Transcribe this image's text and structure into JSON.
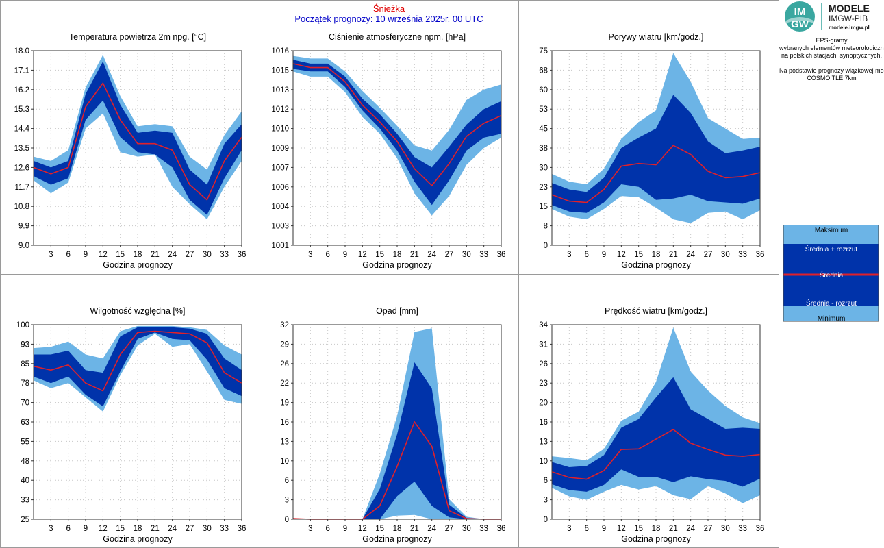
{
  "header": {
    "station": "Śnieżka",
    "start": "Początek prognozy: 10 września 2025r. 00 UTC"
  },
  "logo": {
    "mark_line1": "IM",
    "mark_line2": "GW",
    "title": "MODELE",
    "org": "IMGW-PIB",
    "site": "modele.imgw.pl"
  },
  "side": {
    "line1": "EPS-gramy",
    "line2": "wybranych elementów meteorologicznych",
    "line3": "na polskich stacjach  synoptycznych.",
    "line4": "Na podstawie prognozy wiązkowej modelu",
    "line5": "COSMO TLE 7km"
  },
  "legend": {
    "max": "Maksimum",
    "plus": "Średnia + rozrzut",
    "mean": "Średnia",
    "minus": "Średnia - rozrzut",
    "min": "Minimum"
  },
  "colors": {
    "outer_band": "#6cb4e6",
    "inner_band": "#0033aa",
    "mean_line": "#e0202a",
    "grid": "#c8c8c8"
  },
  "chart_data": [
    {
      "type": "area",
      "title": "Temperatura powietrza 2m npg. [°C]",
      "xlabel": "Godzina prognozy",
      "x": [
        0,
        3,
        6,
        9,
        12,
        15,
        18,
        21,
        24,
        27,
        30,
        33,
        36
      ],
      "xticks": [
        "3",
        "6",
        "9",
        "12",
        "15",
        "18",
        "21",
        "24",
        "27",
        "30",
        "33",
        "36"
      ],
      "ylim": [
        9.0,
        18.0
      ],
      "yticks": [
        "9.0",
        "9.9",
        "10.8",
        "11.7",
        "12.6",
        "13.5",
        "14.4",
        "15.3",
        "16.2",
        "17.1",
        "18.0"
      ],
      "max": [
        13.1,
        12.9,
        13.4,
        16.3,
        17.8,
        15.9,
        14.5,
        14.6,
        14.5,
        13.1,
        12.5,
        14.1,
        15.2
      ],
      "mean_plus": [
        12.9,
        12.6,
        12.9,
        16.0,
        17.5,
        15.5,
        14.2,
        14.3,
        14.2,
        12.5,
        11.8,
        13.7,
        14.6
      ],
      "mean": [
        12.6,
        12.3,
        12.6,
        15.4,
        16.5,
        14.8,
        13.7,
        13.7,
        13.4,
        11.8,
        11.1,
        12.9,
        14.0
      ],
      "mean_minus": [
        12.2,
        11.8,
        12.1,
        14.8,
        15.7,
        14.0,
        13.3,
        13.2,
        12.6,
        11.1,
        10.4,
        12.1,
        13.4
      ],
      "min": [
        12.0,
        11.4,
        11.9,
        14.4,
        15.1,
        13.3,
        13.1,
        13.2,
        11.7,
        10.9,
        10.2,
        11.7,
        12.9
      ]
    },
    {
      "type": "area",
      "title": "Ciśnienie atmosferyczne npm. [hPa]",
      "xlabel": "Godzina prognozy",
      "x": [
        0,
        3,
        6,
        9,
        12,
        15,
        18,
        21,
        24,
        27,
        30,
        33,
        36
      ],
      "xticks": [
        "3",
        "6",
        "9",
        "12",
        "15",
        "18",
        "21",
        "24",
        "27",
        "30",
        "33",
        "36"
      ],
      "ylim": [
        1001,
        1016
      ],
      "yticks": [
        "1001",
        "1003",
        "1004",
        "1006",
        "1007",
        "1009",
        "1010",
        "1012",
        "1013",
        "1015",
        "1016"
      ],
      "max": [
        1015.6,
        1015.4,
        1015.4,
        1014.4,
        1012.9,
        1011.6,
        1010.2,
        1008.7,
        1008.3,
        1009.9,
        1012.2,
        1013.0,
        1013.4
      ],
      "mean_plus": [
        1015.3,
        1015.0,
        1015.0,
        1014.0,
        1012.3,
        1011.1,
        1009.6,
        1007.8,
        1007.0,
        1008.6,
        1010.3,
        1011.5,
        1012.1
      ],
      "mean": [
        1015.0,
        1014.7,
        1014.7,
        1013.6,
        1011.8,
        1010.5,
        1009.0,
        1006.9,
        1005.6,
        1007.3,
        1009.4,
        1010.4,
        1011.0
      ],
      "mean_minus": [
        1014.6,
        1014.4,
        1014.4,
        1013.2,
        1011.4,
        1010.0,
        1008.3,
        1005.9,
        1004.1,
        1006.0,
        1008.3,
        1009.3,
        1009.6
      ],
      "min": [
        1014.4,
        1014.0,
        1014.0,
        1012.8,
        1010.9,
        1009.6,
        1007.7,
        1005.0,
        1003.3,
        1004.8,
        1007.2,
        1008.5,
        1009.3
      ]
    },
    {
      "type": "area",
      "title": "Porywy wiatru [km/godz.]",
      "xlabel": "Godzina prognozy",
      "x": [
        0,
        3,
        6,
        9,
        12,
        15,
        18,
        21,
        24,
        27,
        30,
        33,
        36
      ],
      "xticks": [
        "3",
        "6",
        "9",
        "12",
        "15",
        "18",
        "21",
        "24",
        "27",
        "30",
        "33",
        "36"
      ],
      "ylim": [
        0,
        75
      ],
      "yticks": [
        "0",
        "8",
        "15",
        "23",
        "30",
        "38",
        "45",
        "53",
        "60",
        "68",
        "75"
      ],
      "max": [
        27.5,
        24.5,
        23.5,
        29.5,
        41.0,
        47.5,
        52.0,
        74.0,
        63.0,
        49.0,
        45.0,
        41.0,
        41.5
      ],
      "mean_plus": [
        24.0,
        21.5,
        20.5,
        26.0,
        37.5,
        41.5,
        45.0,
        58.0,
        51.0,
        40.0,
        35.5,
        36.5,
        38.0
      ],
      "mean": [
        19.5,
        17.0,
        16.5,
        21.5,
        30.5,
        31.5,
        31.0,
        38.5,
        35.0,
        28.5,
        26.0,
        26.5,
        28.0
      ],
      "mean_minus": [
        15.5,
        13.0,
        12.5,
        16.5,
        23.5,
        22.5,
        17.5,
        18.0,
        19.5,
        17.0,
        16.5,
        16.0,
        18.0
      ],
      "min": [
        14.0,
        11.0,
        10.0,
        14.0,
        19.0,
        18.5,
        14.5,
        10.0,
        8.5,
        12.5,
        13.0,
        10.0,
        13.5
      ]
    },
    {
      "type": "area",
      "title": "Wilgotność względna [%]",
      "xlabel": "Godzina prognozy",
      "x": [
        0,
        3,
        6,
        9,
        12,
        15,
        18,
        21,
        24,
        27,
        30,
        33,
        36
      ],
      "xticks": [
        "3",
        "6",
        "9",
        "12",
        "15",
        "18",
        "21",
        "24",
        "27",
        "30",
        "33",
        "36"
      ],
      "ylim": [
        25,
        100
      ],
      "yticks": [
        "25",
        "33",
        "40",
        "48",
        "55",
        "63",
        "70",
        "78",
        "85",
        "93",
        "100"
      ],
      "max": [
        91.0,
        91.5,
        93.5,
        88.5,
        87.0,
        97.5,
        99.5,
        99.5,
        99.5,
        99.0,
        98.0,
        92.0,
        88.5
      ],
      "mean_plus": [
        88.5,
        88.5,
        90.0,
        82.5,
        81.5,
        95.5,
        99.0,
        99.0,
        99.0,
        98.5,
        96.5,
        87.0,
        82.5
      ],
      "mean": [
        84.0,
        82.5,
        84.5,
        77.5,
        74.5,
        88.5,
        97.0,
        97.5,
        97.0,
        96.5,
        93.0,
        81.5,
        77.5
      ],
      "mean_minus": [
        80.0,
        77.5,
        80.0,
        73.0,
        68.5,
        82.0,
        94.5,
        97.0,
        94.5,
        94.0,
        86.5,
        75.5,
        72.5
      ],
      "min": [
        78.5,
        75.5,
        77.5,
        72.0,
        66.5,
        80.5,
        92.0,
        96.5,
        91.5,
        92.5,
        82.0,
        71.0,
        69.5
      ]
    },
    {
      "type": "area",
      "title": "Opad [mm]",
      "xlabel": "Godzina prognozy",
      "x": [
        0,
        3,
        6,
        9,
        12,
        15,
        18,
        21,
        24,
        27,
        30,
        33,
        36
      ],
      "xticks": [
        "3",
        "6",
        "9",
        "12",
        "15",
        "18",
        "21",
        "24",
        "27",
        "30",
        "33",
        "36"
      ],
      "ylim": [
        0,
        32
      ],
      "yticks": [
        "0",
        "3",
        "6",
        "10",
        "13",
        "16",
        "19",
        "22",
        "26",
        "29",
        "32"
      ],
      "max": [
        0.1,
        0.0,
        0.0,
        0.0,
        0.0,
        7.5,
        17.0,
        30.8,
        31.4,
        3.3,
        0.4,
        0.0,
        0.0
      ],
      "mean_plus": [
        0.1,
        0.0,
        0.0,
        0.0,
        0.0,
        5.0,
        14.0,
        25.8,
        21.5,
        2.4,
        0.2,
        0.0,
        0.0
      ],
      "mean": [
        0.1,
        0.0,
        0.0,
        0.0,
        0.0,
        2.2,
        8.7,
        16.0,
        12.0,
        1.4,
        0.1,
        0.0,
        0.0
      ],
      "mean_minus": [
        0.0,
        0.0,
        0.0,
        0.0,
        0.0,
        0.0,
        3.8,
        6.2,
        2.2,
        0.3,
        0.0,
        0.0,
        0.0
      ],
      "min": [
        0.0,
        0.0,
        0.0,
        0.0,
        0.0,
        0.0,
        0.6,
        0.7,
        0.0,
        0.0,
        0.0,
        0.0,
        0.0
      ]
    },
    {
      "type": "area",
      "title": "Prędkość wiatru [km/godz.]",
      "xlabel": "Godzina prognozy",
      "x": [
        0,
        3,
        6,
        9,
        12,
        15,
        18,
        21,
        24,
        27,
        30,
        33,
        36
      ],
      "xticks": [
        "3",
        "6",
        "9",
        "12",
        "15",
        "18",
        "21",
        "24",
        "27",
        "30",
        "33",
        "36"
      ],
      "ylim": [
        0,
        34
      ],
      "yticks": [
        "0",
        "3",
        "6",
        "10",
        "13",
        "16",
        "20",
        "23",
        "26",
        "31",
        "34"
      ],
      "max": [
        11.0,
        10.7,
        10.3,
        12.3,
        17.2,
        18.8,
        24.0,
        33.5,
        25.8,
        22.5,
        19.8,
        17.8,
        16.8
      ],
      "mean_plus": [
        10.0,
        9.1,
        9.3,
        11.2,
        16.0,
        17.5,
        21.3,
        24.8,
        19.2,
        17.5,
        15.8,
        16.0,
        15.8
      ],
      "mean": [
        8.3,
        7.3,
        7.0,
        8.5,
        12.2,
        12.3,
        14.0,
        15.7,
        13.3,
        12.2,
        11.2,
        11.0,
        11.3
      ],
      "mean_minus": [
        6.1,
        5.1,
        4.8,
        6.0,
        8.7,
        7.4,
        7.4,
        6.5,
        7.5,
        7.0,
        6.7,
        5.7,
        7.1
      ],
      "min": [
        5.5,
        4.0,
        3.4,
        4.8,
        6.0,
        5.2,
        5.8,
        4.2,
        3.5,
        5.8,
        4.5,
        2.8,
        4.2
      ]
    }
  ]
}
